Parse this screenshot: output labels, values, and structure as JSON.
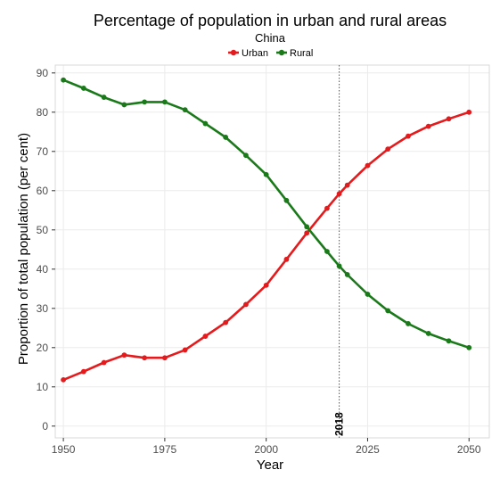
{
  "chart_data": {
    "type": "line",
    "title": "Percentage of population in urban and rural areas",
    "subtitle": "China",
    "xlabel": "Year",
    "ylabel": "Proportion of total population (per cent)",
    "x": [
      1950,
      1955,
      1960,
      1965,
      1970,
      1975,
      1980,
      1985,
      1990,
      1995,
      2000,
      2005,
      2010,
      2015,
      2018,
      2020,
      2025,
      2030,
      2035,
      2040,
      2045,
      2050
    ],
    "series": [
      {
        "name": "Urban",
        "color": "#e41a1c",
        "values": [
          11.8,
          13.9,
          16.2,
          18.1,
          17.4,
          17.4,
          19.4,
          22.9,
          26.4,
          31.0,
          35.9,
          42.5,
          49.2,
          55.5,
          59.2,
          61.4,
          66.4,
          70.6,
          73.9,
          76.4,
          78.3,
          80.0
        ]
      },
      {
        "name": "Rural",
        "color": "#1a7a1a",
        "values": [
          88.2,
          86.1,
          83.8,
          81.9,
          82.6,
          82.6,
          80.6,
          77.1,
          73.6,
          69.0,
          64.1,
          57.5,
          50.8,
          44.5,
          40.8,
          38.6,
          33.6,
          29.4,
          26.1,
          23.6,
          21.7,
          20.0
        ]
      }
    ],
    "xlim": [
      1948,
      2055
    ],
    "ylim": [
      -3,
      92
    ],
    "xticks": [
      1950,
      1975,
      2000,
      2025,
      2050
    ],
    "yticks": [
      0,
      10,
      20,
      30,
      40,
      50,
      60,
      70,
      80,
      90
    ],
    "grid": true,
    "legend": "top-center",
    "annotation": {
      "x": 2018,
      "label": "2018",
      "style": "dotted"
    }
  }
}
